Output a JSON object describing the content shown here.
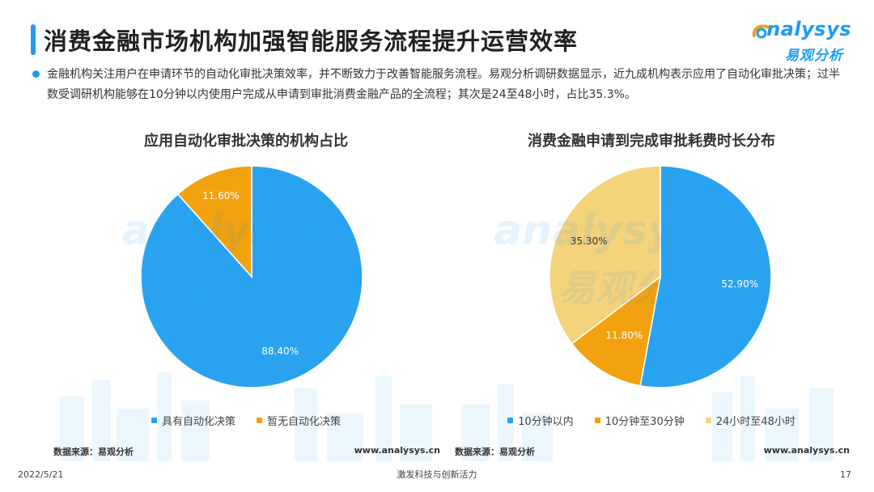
{
  "header": {
    "title": "消费金融市场机构加强智能服务流程提升运营效率"
  },
  "logo": {
    "word": "nalysys",
    "cn": "易观分析"
  },
  "intro": {
    "text": "金融机构关注用户在申请环节的自动化审批决策效率，并不断致力于改善智能服务流程。易观分析调研数据显示，近九成机构表示应用了自动化审批决策；过半数受调研机构能够在10分钟以内使用户完成从申请到审批消费金融产品的全流程；其次是24至48小时，占比35.3%。"
  },
  "colors": {
    "blue": "#29a3ef",
    "orange": "#f2a20f",
    "yellow": "#f5d37a",
    "accent": "#1e9cf0"
  },
  "watermark": {
    "word": "analysys",
    "cn": "易观分析"
  },
  "chart_data": [
    {
      "type": "pie",
      "title": "应用自动化审批决策的机构占比",
      "labels": [
        "具有自动化决策",
        "暂无自动化决策"
      ],
      "values": [
        88.4,
        11.6
      ],
      "value_labels": [
        "88.40%",
        "11.60%"
      ],
      "colors": [
        "#29a3ef",
        "#f2a20f"
      ],
      "legend": "bottom",
      "start": "top, clockwise from 暂无自动化决策 counter-clockwise"
    },
    {
      "type": "pie",
      "title": "消费金融申请到完成审批耗费时长分布",
      "labels": [
        "10分钟以内",
        "10分钟至30分钟",
        "24小时至48小时"
      ],
      "values": [
        52.9,
        11.8,
        35.3
      ],
      "value_labels": [
        "52.90%",
        "11.80%",
        "35.30%"
      ],
      "colors": [
        "#29a3ef",
        "#f2a20f",
        "#f5d37a"
      ],
      "legend": "bottom"
    }
  ],
  "sources": {
    "left": "数据来源：易观分析",
    "right": "数据来源：易观分析",
    "site_left": "www.analysys.cn",
    "site_right": "www.analysys.cn"
  },
  "footer": {
    "date": "2022/5/21",
    "slogan": "激发科技与创新活力",
    "page": "17"
  }
}
